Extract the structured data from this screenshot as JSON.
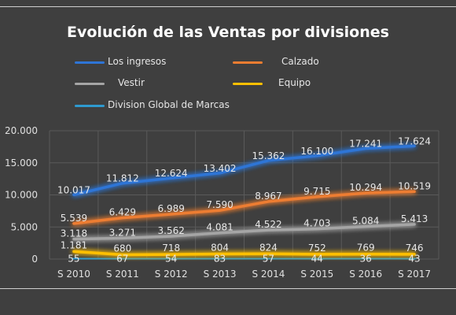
{
  "chart_data": {
    "type": "line",
    "title": "Evolución de las Ventas por divisiones",
    "categories": [
      "S 2010",
      "S 2011",
      "S 2012",
      "S 2013",
      "S 2014",
      "S 2015",
      "S 2016",
      "S 2017"
    ],
    "yticks": [
      "0",
      "5.000",
      "10.000",
      "15.000",
      "20.000"
    ],
    "ylim": [
      0,
      20000
    ],
    "grid": true,
    "legend_position": "top",
    "series": [
      {
        "name": "Los ingresos",
        "color": "#2e75d6",
        "values": [
          10017,
          11812,
          12624,
          13402,
          15362,
          16100,
          17241,
          17624
        ],
        "labels": [
          "10.017",
          "11.812",
          "12.624",
          "13.402",
          "15.362",
          "16.100",
          "17.241",
          "17.624"
        ]
      },
      {
        "name": "Calzado",
        "color": "#ed7d31",
        "values": [
          5539,
          6429,
          6989,
          7590,
          8967,
          9715,
          10294,
          10519
        ],
        "labels": [
          "5.539",
          "6.429",
          "6.989",
          "7.590",
          "8.967",
          "9.715",
          "10.294",
          "10.519"
        ]
      },
      {
        "name": "Vestir",
        "color": "#a5a5a5",
        "values": [
          3118,
          3271,
          3562,
          4081,
          4522,
          4703,
          5084,
          5413
        ],
        "labels": [
          "3.118",
          "3.271",
          "3.562",
          "4.081",
          "4.522",
          "4.703",
          "5.084",
          "5.413"
        ]
      },
      {
        "name": "Equipo",
        "color": "#ffc000",
        "values": [
          1181,
          680,
          718,
          804,
          824,
          752,
          769,
          746
        ],
        "labels": [
          "1.181",
          "680",
          "718",
          "804",
          "824",
          "752",
          "769",
          "746"
        ]
      },
      {
        "name": "Division Global de Marcas",
        "color": "#2e9ad0",
        "values": [
          55,
          67,
          54,
          83,
          57,
          44,
          36,
          43
        ],
        "labels": [
          "55",
          "67",
          "54",
          "83",
          "57",
          "44",
          "36",
          "43"
        ]
      }
    ]
  }
}
